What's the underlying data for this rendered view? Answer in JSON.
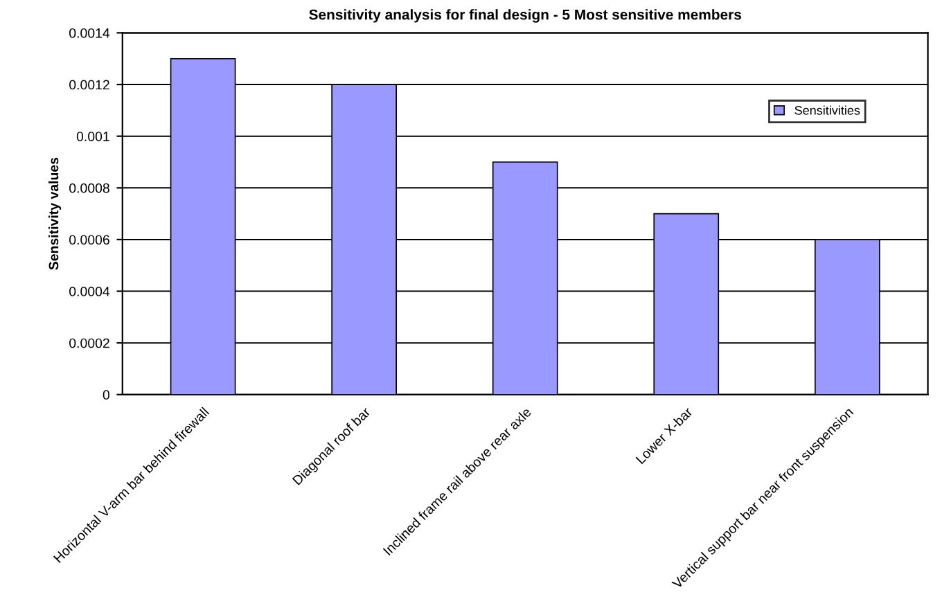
{
  "chart_data": {
    "type": "bar",
    "title": "Sensitivity analysis for final design - 5 Most sensitive members",
    "ylabel": "Sensitivity values",
    "categories": [
      "Horizontal V-arm bar behind firewall",
      "Diagonal roof bar",
      "Inclined frame rail above rear axle",
      "Lower X-bar",
      "Vertical support bar near front suspension"
    ],
    "series": [
      {
        "name": "Sensitivities",
        "color": "#9999ff",
        "values": [
          0.0013,
          0.0012,
          0.0009,
          0.0007,
          0.0006
        ]
      }
    ],
    "ylim": [
      0,
      0.0014
    ],
    "yticks": [
      0,
      0.0002,
      0.0004,
      0.0006,
      0.0008,
      0.001,
      0.0012,
      0.0014
    ],
    "grid": "y",
    "legend": "top right"
  }
}
